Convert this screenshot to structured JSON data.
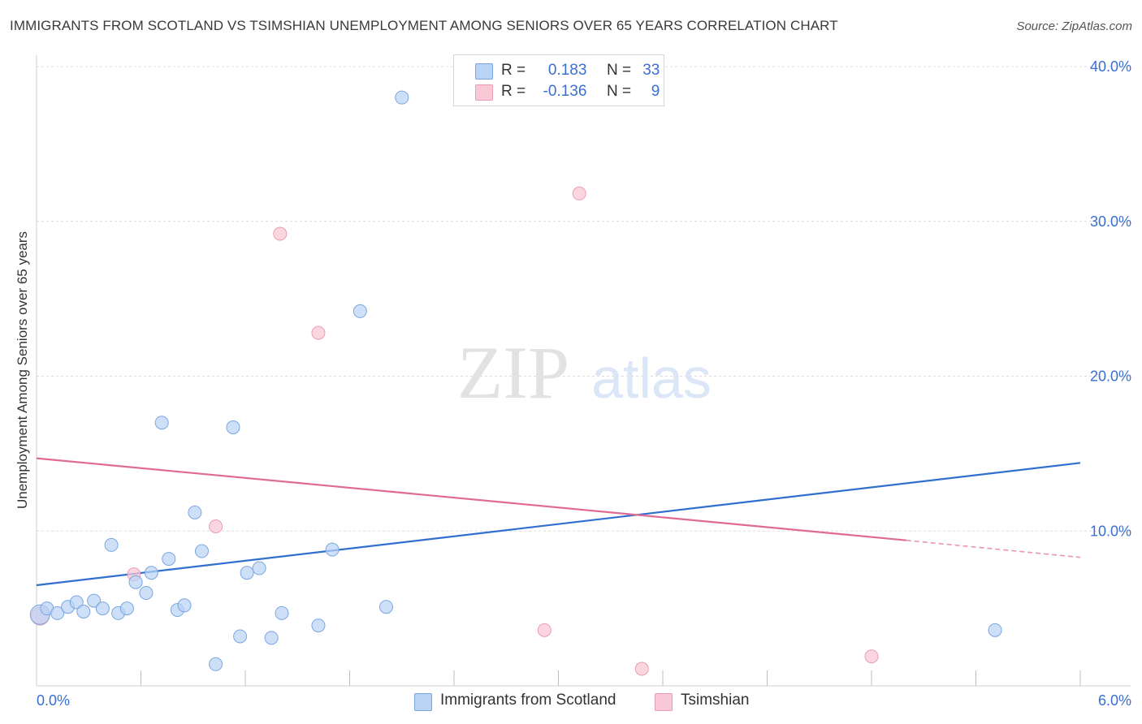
{
  "title": "IMMIGRANTS FROM SCOTLAND VS TSIMSHIAN UNEMPLOYMENT AMONG SENIORS OVER 65 YEARS CORRELATION CHART",
  "source": "Source: ZipAtlas.com",
  "watermark": {
    "zip": "ZIP",
    "atlas": "atlas"
  },
  "legend": {
    "r_label": "R =",
    "n_label": "N =",
    "series": [
      {
        "name": "Immigrants from Scotland",
        "r": "0.183",
        "n": "33"
      },
      {
        "name": "Tsimshian",
        "r": "-0.136",
        "n": "9"
      }
    ]
  },
  "colors": {
    "blue_fill": "#b9d3f5",
    "blue_stroke": "#7ba6e0",
    "blue_line": "#2f6fcf",
    "pink_fill": "#f9c8d6",
    "pink_stroke": "#eb9bb3",
    "pink_line": "#e06a94",
    "axis_label": "#3a6fd1",
    "grid": "#dcdcdc"
  },
  "chart_data": {
    "type": "scatter",
    "xlabel": "",
    "ylabel": "Unemployment Among Seniors over 65 years",
    "xlim": [
      0,
      6
    ],
    "ylim": [
      0,
      40
    ],
    "x_tick_labels": [
      "0.0%",
      "6.0%"
    ],
    "y_ticks": [
      10,
      20,
      30,
      40
    ],
    "y_tick_labels": [
      "10.0%",
      "20.0%",
      "30.0%",
      "40.0%"
    ],
    "series": [
      {
        "name": "Immigrants from Scotland",
        "points": [
          [
            0.02,
            4.6
          ],
          [
            0.06,
            5.0
          ],
          [
            0.12,
            4.7
          ],
          [
            0.18,
            5.1
          ],
          [
            0.23,
            5.4
          ],
          [
            0.27,
            4.8
          ],
          [
            0.33,
            5.5
          ],
          [
            0.38,
            5.0
          ],
          [
            0.43,
            9.1
          ],
          [
            0.47,
            4.7
          ],
          [
            0.52,
            5.0
          ],
          [
            0.57,
            6.7
          ],
          [
            0.63,
            6.0
          ],
          [
            0.66,
            7.3
          ],
          [
            0.72,
            17.0
          ],
          [
            0.76,
            8.2
          ],
          [
            0.81,
            4.9
          ],
          [
            0.85,
            5.2
          ],
          [
            0.91,
            11.2
          ],
          [
            0.95,
            8.7
          ],
          [
            1.03,
            1.4
          ],
          [
            1.13,
            16.7
          ],
          [
            1.17,
            3.2
          ],
          [
            1.21,
            7.3
          ],
          [
            1.28,
            7.6
          ],
          [
            1.35,
            3.1
          ],
          [
            1.41,
            4.7
          ],
          [
            1.62,
            3.9
          ],
          [
            1.7,
            8.8
          ],
          [
            1.86,
            24.2
          ],
          [
            2.01,
            5.1
          ],
          [
            2.1,
            38.0
          ],
          [
            5.51,
            3.6
          ]
        ],
        "trend": {
          "x": [
            0,
            6
          ],
          "y": [
            6.5,
            14.4
          ]
        }
      },
      {
        "name": "Tsimshian",
        "points": [
          [
            0.02,
            4.5
          ],
          [
            0.56,
            7.2
          ],
          [
            1.4,
            29.2
          ],
          [
            1.03,
            10.3
          ],
          [
            1.62,
            22.8
          ],
          [
            2.92,
            3.6
          ],
          [
            3.12,
            31.8
          ],
          [
            3.48,
            1.1
          ],
          [
            4.8,
            1.9
          ]
        ],
        "trend": {
          "x": [
            0,
            5.0
          ],
          "y": [
            14.7,
            9.4
          ]
        },
        "trend_dashed": {
          "x": [
            5.0,
            6.0
          ],
          "y": [
            9.4,
            8.3
          ]
        }
      }
    ]
  }
}
